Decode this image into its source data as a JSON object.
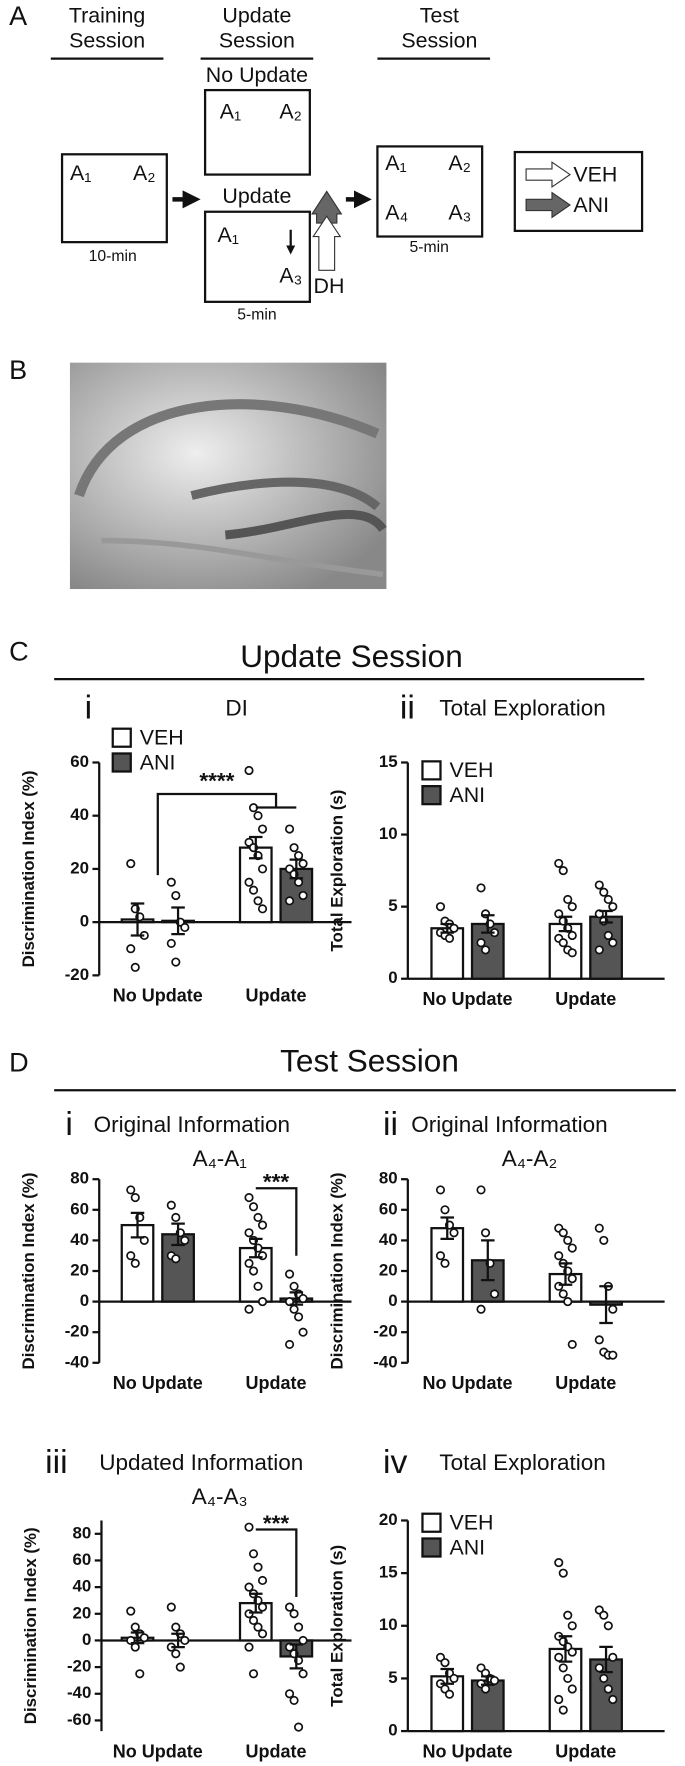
{
  "panel_labels": [
    "A",
    "B",
    "C",
    "D"
  ],
  "diagram": {
    "training_heading": [
      "Training",
      "Session"
    ],
    "update_heading": [
      "Update",
      "Session"
    ],
    "test_heading": [
      "Test",
      "Session"
    ],
    "no_update": "No Update",
    "update": "Update",
    "training_objects": [
      "A₁",
      "A₂"
    ],
    "no_update_objects": [
      "A₁",
      "A₂"
    ],
    "update_objects": [
      "A₁",
      "A₃"
    ],
    "test_objects": [
      "A₁",
      "A₂",
      "A₄",
      "A₃"
    ],
    "durations": [
      "10-min",
      "5-min",
      "5-min"
    ],
    "infusion_site": "DH",
    "legend": [
      "VEH",
      "ANI"
    ]
  },
  "sections": [
    "Update Session",
    "Test Session"
  ],
  "chart_data": [
    {
      "type": "bar",
      "label": "i",
      "title": "DI",
      "ylabel": "Discrimination Index (%)",
      "categories": [
        "No Update",
        "Update"
      ],
      "series": [
        {
          "name": "VEH",
          "color": "#ffffff",
          "values": [
            1,
            28
          ],
          "errors": [
            6,
            4
          ],
          "points": [
            [
              22,
              5,
              2,
              -5,
              -10,
              -17
            ],
            [
              57,
              43,
              40,
              35,
              30,
              28,
              25,
              20,
              15,
              12,
              8,
              5
            ]
          ]
        },
        {
          "name": "ANI",
          "color": "#555555",
          "values": [
            0.5,
            20
          ],
          "errors": [
            5,
            3.5
          ],
          "points": [
            [
              15,
              10,
              0,
              -2,
              -8,
              -15
            ],
            [
              35,
              28,
              25,
              22,
              20,
              18,
              15,
              10,
              8
            ]
          ]
        }
      ],
      "ylim": [
        -20,
        60
      ],
      "yticks": [
        -20,
        0,
        20,
        40,
        60
      ],
      "legend": true,
      "annotation": "****"
    },
    {
      "type": "bar",
      "label": "ii",
      "title": "Total Exploration",
      "ylabel": "Total Exploration (s)",
      "categories": [
        "No Update",
        "Update"
      ],
      "series": [
        {
          "name": "VEH",
          "color": "#ffffff",
          "values": [
            3.5,
            3.8
          ],
          "errors": [
            0.3,
            0.5
          ],
          "points": [
            [
              5,
              4,
              3.8,
              3.5,
              3.2,
              3,
              2.8
            ],
            [
              8,
              7.5,
              5.5,
              5,
              4.5,
              4,
              3.5,
              3,
              2.8,
              2.5,
              2,
              1.8
            ]
          ]
        },
        {
          "name": "ANI",
          "color": "#555555",
          "values": [
            3.8,
            4.3
          ],
          "errors": [
            0.6,
            0.4
          ],
          "points": [
            [
              6.3,
              4.5,
              3.8,
              3.2,
              2.5,
              2
            ],
            [
              6.5,
              6,
              5.5,
              5,
              4.5,
              4,
              3,
              2.5,
              2
            ]
          ]
        }
      ],
      "ylim": [
        0,
        15
      ],
      "yticks": [
        0,
        5,
        10,
        15
      ],
      "legend": true
    },
    {
      "type": "bar",
      "label": "i",
      "title": "Original Information",
      "subtitle": "A₄-A₁",
      "ylabel": "Discrimination Index (%)",
      "categories": [
        "No Update",
        "Update"
      ],
      "series": [
        {
          "color": "#ffffff",
          "values": [
            50,
            35
          ],
          "errors": [
            8,
            6
          ],
          "points": [
            [
              73,
              68,
              55,
              40,
              30,
              25
            ],
            [
              68,
              62,
              55,
              50,
              45,
              40,
              35,
              30,
              25,
              20,
              10,
              0,
              -5
            ]
          ]
        },
        {
          "color": "#555555",
          "values": [
            44,
            2
          ],
          "errors": [
            7,
            4
          ],
          "points": [
            [
              63,
              55,
              45,
              40,
              30,
              28
            ],
            [
              18,
              10,
              5,
              2,
              0,
              -5,
              -10,
              -20,
              -28
            ]
          ]
        }
      ],
      "ylim": [
        -40,
        80
      ],
      "yticks": [
        -40,
        -20,
        0,
        20,
        40,
        60,
        80
      ],
      "annotation": "***"
    },
    {
      "type": "bar",
      "label": "ii",
      "title": "Original Information",
      "subtitle": "A₄-A₂",
      "ylabel": "Discrimination Index (%)",
      "categories": [
        "No Update",
        "Update"
      ],
      "series": [
        {
          "color": "#ffffff",
          "values": [
            48,
            18
          ],
          "errors": [
            7,
            7
          ],
          "points": [
            [
              73,
              60,
              50,
              45,
              30,
              25
            ],
            [
              48,
              45,
              40,
              35,
              30,
              25,
              20,
              15,
              10,
              5,
              0,
              -28
            ]
          ]
        },
        {
          "color": "#555555",
          "values": [
            27,
            -2
          ],
          "errors": [
            13,
            12
          ],
          "points": [
            [
              73,
              45,
              25,
              5,
              -5
            ],
            [
              48,
              40,
              10,
              -5,
              -25,
              -33,
              -35,
              -35
            ]
          ]
        }
      ],
      "ylim": [
        -40,
        80
      ],
      "yticks": [
        -40,
        -20,
        0,
        20,
        40,
        60,
        80
      ]
    },
    {
      "type": "bar",
      "label": "iii",
      "title": "Updated Information",
      "subtitle": "A₄-A₃",
      "ylabel": "Discrimination Index (%)",
      "categories": [
        "No Update",
        "Update"
      ],
      "series": [
        {
          "color": "#ffffff",
          "values": [
            2,
            28
          ],
          "errors": [
            4,
            7
          ],
          "points": [
            [
              22,
              10,
              5,
              2,
              0,
              -5,
              -25
            ],
            [
              85,
              65,
              55,
              45,
              40,
              35,
              30,
              25,
              20,
              15,
              10,
              5,
              -5,
              -25
            ]
          ]
        },
        {
          "color": "#555555",
          "values": [
            0,
            -12
          ],
          "errors": [
            5,
            9
          ],
          "points": [
            [
              25,
              10,
              5,
              0,
              -5,
              -10,
              -20
            ],
            [
              25,
              20,
              10,
              0,
              -5,
              -10,
              -15,
              -25,
              -40,
              -45,
              -65
            ]
          ]
        }
      ],
      "ylim": [
        -68,
        90
      ],
      "yticks": [
        -60,
        -40,
        -20,
        0,
        20,
        40,
        60,
        80
      ],
      "annotation": "***"
    },
    {
      "type": "bar",
      "label": "iv",
      "title": "Total Exploration",
      "ylabel": "Total Exploration (s)",
      "categories": [
        "No Update",
        "Update"
      ],
      "series": [
        {
          "name": "VEH",
          "color": "#ffffff",
          "values": [
            5.2,
            7.8
          ],
          "errors": [
            0.7,
            1.2
          ],
          "points": [
            [
              7,
              6.5,
              5.5,
              5,
              4.5,
              4,
              3.5
            ],
            [
              16,
              15,
              11,
              10,
              9,
              8.5,
              8,
              7.5,
              7,
              6,
              5,
              4,
              3,
              2
            ]
          ]
        },
        {
          "name": "ANI",
          "color": "#555555",
          "values": [
            4.8,
            6.8
          ],
          "errors": [
            0.4,
            1.2
          ],
          "points": [
            [
              6,
              5.5,
              5,
              4.8,
              4.5,
              4
            ],
            [
              11.5,
              11,
              10,
              7,
              6,
              5,
              4,
              3
            ]
          ]
        }
      ],
      "ylim": [
        0,
        20
      ],
      "yticks": [
        0,
        5,
        10,
        15,
        20
      ],
      "legend": true
    }
  ]
}
